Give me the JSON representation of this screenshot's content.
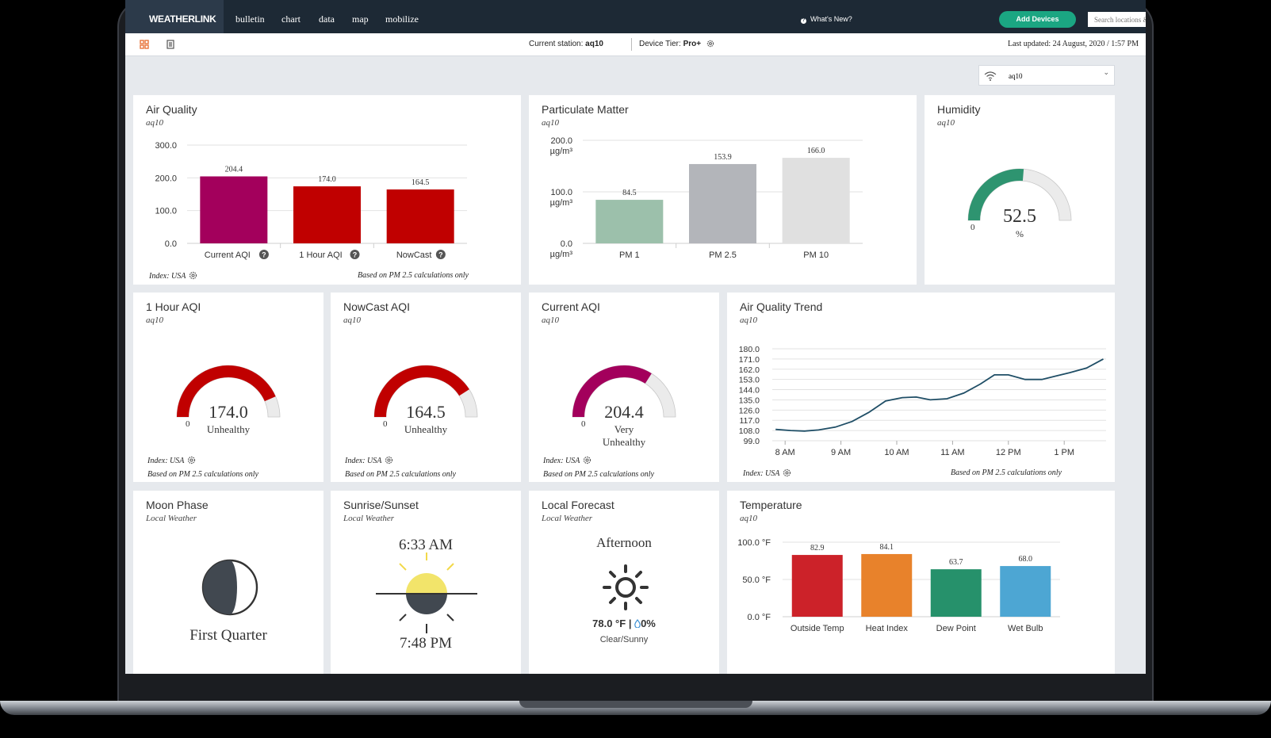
{
  "app": {
    "logo": "WEATHERLINK",
    "nav": [
      "bulletin",
      "chart",
      "data",
      "map",
      "mobilize"
    ],
    "whats_new": "What's New?",
    "add_devices": "Add Devices",
    "search_placeholder": "Search locations & stations"
  },
  "subbar": {
    "current_station_label": "Current station:",
    "current_station": "aq10",
    "device_tier_label": "Device Tier:",
    "device_tier": "Pro+",
    "last_updated": "Last updated: 24 August, 2020 / 1:57 PM"
  },
  "station_select": "aq10",
  "cards": {
    "air_quality": {
      "title": "Air Quality",
      "sub": "aq10",
      "index": "Index: USA",
      "note": "Based on PM 2.5 calculations only"
    },
    "particulate": {
      "title": "Particulate Matter",
      "sub": "aq10"
    },
    "humidity": {
      "title": "Humidity",
      "sub": "aq10",
      "value": "52.5",
      "unit": "%",
      "min": "0"
    },
    "one_hour": {
      "title": "1 Hour AQI",
      "sub": "aq10",
      "value": "174.0",
      "status": "Unhealthy",
      "min": "0",
      "index": "Index: USA",
      "note": "Based on PM 2.5 calculations only"
    },
    "nowcast": {
      "title": "NowCast AQI",
      "sub": "aq10",
      "value": "164.5",
      "status": "Unhealthy",
      "min": "0",
      "index": "Index: USA",
      "note": "Based on PM 2.5 calculations only"
    },
    "current": {
      "title": "Current AQI",
      "sub": "aq10",
      "value": "204.4",
      "status_line1": "Very",
      "status_line2": "Unhealthy",
      "min": "0",
      "index": "Index: USA",
      "note": "Based on PM 2.5 calculations only"
    },
    "trend": {
      "title": "Air Quality Trend",
      "sub": "aq10",
      "index": "Index: USA",
      "note": "Based on PM 2.5 calculations only"
    },
    "moon": {
      "title": "Moon Phase",
      "sub": "Local Weather",
      "phase": "First Quarter"
    },
    "sun": {
      "title": "Sunrise/Sunset",
      "sub": "Local Weather",
      "sunrise": "6:33 AM",
      "sunset": "7:48 PM"
    },
    "forecast": {
      "title": "Local Forecast",
      "sub": "Local Weather",
      "period": "Afternoon",
      "temp": "78.0 °F",
      "sep": "|",
      "precip": "0%",
      "condition": "Clear/Sunny"
    },
    "temperature": {
      "title": "Temperature",
      "sub": "aq10"
    }
  },
  "gauges": {
    "humidity": {
      "fraction": 0.525,
      "color": "#2e9470",
      "track": "#ebebeb"
    },
    "one_hour": {
      "fraction": 0.87,
      "color": "#c00000",
      "track": "#ebebeb"
    },
    "nowcast": {
      "fraction": 0.82,
      "color": "#c00000",
      "track": "#ebebeb"
    },
    "current": {
      "fraction": 0.68,
      "color": "#a3005c",
      "track": "#ebebeb"
    }
  },
  "chart_data": [
    {
      "type": "bar",
      "id": "air_quality",
      "categories": [
        "Current AQI",
        "1 Hour AQI",
        "NowCast"
      ],
      "values": [
        204.4,
        174.0,
        164.5
      ],
      "value_labels": [
        "204.4",
        "174.0",
        "164.5"
      ],
      "colors": [
        "#a3005c",
        "#c00000",
        "#c00000"
      ],
      "yticks": [
        "0.0",
        "100.0",
        "200.0",
        "300.0"
      ],
      "ylim": [
        0,
        300
      ],
      "grid": true
    },
    {
      "type": "bar",
      "id": "particulate",
      "categories": [
        "PM 1",
        "PM 2.5",
        "PM 10"
      ],
      "values": [
        84.5,
        153.9,
        166.0
      ],
      "value_labels": [
        "84.5",
        "153.9",
        "166.0"
      ],
      "colors": [
        "#9cc0ab",
        "#b3b5ba",
        "#e0e0e0"
      ],
      "yticks": [
        "0.0",
        "100.0",
        "200.0"
      ],
      "yunit": "µg/m³",
      "ylim": [
        0,
        200
      ],
      "grid": true
    },
    {
      "type": "line",
      "id": "trend",
      "x_ticks": [
        "8 AM",
        "9 AM",
        "10 AM",
        "11 AM",
        "12 PM",
        "1 PM"
      ],
      "x_range": [
        7.77,
        13.75
      ],
      "x": [
        7.83,
        8.1,
        8.35,
        8.6,
        8.9,
        9.2,
        9.5,
        9.8,
        10.1,
        10.35,
        10.6,
        10.9,
        11.2,
        11.5,
        11.75,
        12.0,
        12.3,
        12.6,
        12.85,
        13.1,
        13.4,
        13.7
      ],
      "y": [
        109,
        108,
        107.5,
        108.5,
        111,
        116,
        124,
        134,
        137,
        137.5,
        135,
        136,
        141,
        149,
        157,
        157,
        153,
        153,
        156,
        159,
        163,
        171
      ],
      "color": "#1f4e66",
      "yticks": [
        "99.0",
        "108.0",
        "117.0",
        "126.0",
        "135.0",
        "144.0",
        "153.0",
        "162.0",
        "171.0",
        "180.0"
      ],
      "ylim": [
        99,
        180
      ],
      "grid": true
    },
    {
      "type": "bar",
      "id": "temperature",
      "categories": [
        "Outside Temp",
        "Heat Index",
        "Dew Point",
        "Wet Bulb"
      ],
      "values": [
        82.9,
        84.1,
        63.7,
        68.0
      ],
      "value_labels": [
        "82.9",
        "84.1",
        "63.7",
        "68.0"
      ],
      "colors": [
        "#cc2229",
        "#e8822b",
        "#26916b",
        "#4da6d3"
      ],
      "yticks": [
        "0.0 °F",
        "50.0 °F",
        "100.0 °F"
      ],
      "ylim": [
        0,
        100
      ],
      "grid": true
    }
  ]
}
